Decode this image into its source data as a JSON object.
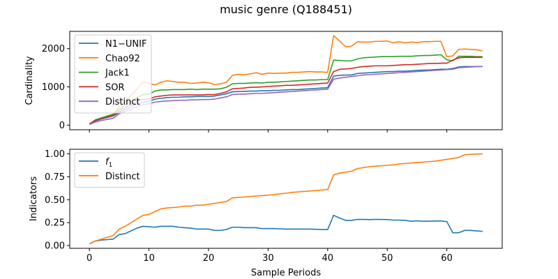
{
  "figure": {
    "title": "music genre (Q188451)"
  },
  "chart_data": [
    {
      "type": "line",
      "ylabel": "Cardinality",
      "xlabel": "",
      "xlim": [
        -3.3,
        69.3
      ],
      "ylim": [
        -120,
        2450
      ],
      "xticks": [
        0,
        10,
        20,
        30,
        40,
        50,
        60
      ],
      "yticks": [
        0,
        1000,
        2000
      ],
      "show_xtick_labels": false,
      "legend_position": "upper left",
      "x": [
        0,
        1,
        2,
        3,
        4,
        5,
        6,
        7,
        8,
        9,
        10,
        11,
        12,
        13,
        14,
        15,
        16,
        17,
        18,
        19,
        20,
        21,
        22,
        23,
        24,
        25,
        26,
        27,
        28,
        29,
        30,
        31,
        32,
        33,
        34,
        35,
        36,
        37,
        38,
        39,
        40,
        41,
        42,
        43,
        44,
        45,
        46,
        47,
        48,
        49,
        50,
        51,
        52,
        53,
        54,
        55,
        56,
        57,
        58,
        59,
        60,
        61,
        62,
        63,
        64,
        65,
        66
      ],
      "series": [
        {
          "name": "N1−UNIF",
          "color": "#1f77b4",
          "values": [
            30,
            110,
            160,
            200,
            240,
            330,
            410,
            480,
            550,
            600,
            620,
            680,
            700,
            720,
            730,
            730,
            740,
            740,
            750,
            750,
            750,
            760,
            790,
            820,
            870,
            880,
            880,
            890,
            890,
            900,
            900,
            910,
            910,
            920,
            930,
            930,
            940,
            950,
            960,
            970,
            980,
            1280,
            1300,
            1310,
            1310,
            1350,
            1360,
            1370,
            1380,
            1390,
            1400,
            1400,
            1410,
            1410,
            1420,
            1430,
            1440,
            1440,
            1450,
            1460,
            1460,
            1480,
            1520,
            1530,
            1530,
            1530,
            1530
          ]
        },
        {
          "name": "Chao92",
          "color": "#ff7f0e",
          "values": [
            30,
            130,
            180,
            230,
            280,
            480,
            620,
            780,
            940,
            1130,
            1100,
            1050,
            1120,
            1160,
            1140,
            1120,
            1120,
            1090,
            1100,
            1120,
            1110,
            1060,
            1080,
            1120,
            1300,
            1330,
            1320,
            1340,
            1370,
            1330,
            1360,
            1350,
            1360,
            1360,
            1380,
            1380,
            1390,
            1400,
            1390,
            1390,
            1380,
            2340,
            2200,
            2050,
            2060,
            2180,
            2170,
            2170,
            2190,
            2190,
            2200,
            2150,
            2180,
            2150,
            2170,
            2160,
            2180,
            2180,
            2190,
            2190,
            1790,
            1810,
            1980,
            1990,
            1980,
            1970,
            1940
          ]
        },
        {
          "name": "Jack1",
          "color": "#2ca02c",
          "values": [
            30,
            140,
            190,
            240,
            290,
            420,
            520,
            620,
            720,
            800,
            810,
            890,
            920,
            920,
            930,
            930,
            930,
            940,
            930,
            940,
            940,
            940,
            950,
            990,
            1080,
            1090,
            1090,
            1100,
            1110,
            1100,
            1120,
            1120,
            1130,
            1140,
            1150,
            1160,
            1170,
            1180,
            1180,
            1190,
            1190,
            1700,
            1690,
            1680,
            1680,
            1730,
            1760,
            1770,
            1780,
            1790,
            1790,
            1790,
            1800,
            1800,
            1800,
            1810,
            1820,
            1820,
            1830,
            1840,
            1710,
            1680,
            1800,
            1800,
            1800,
            1790,
            1790
          ]
        },
        {
          "name": "SOR",
          "color": "#d62728",
          "values": [
            30,
            120,
            170,
            210,
            250,
            370,
            460,
            540,
            620,
            680,
            680,
            740,
            760,
            780,
            790,
            790,
            790,
            790,
            790,
            790,
            800,
            800,
            830,
            870,
            950,
            960,
            970,
            990,
            990,
            1000,
            1010,
            1020,
            1030,
            1040,
            1040,
            1050,
            1060,
            1070,
            1080,
            1090,
            1100,
            1400,
            1460,
            1470,
            1480,
            1510,
            1530,
            1540,
            1550,
            1550,
            1550,
            1560,
            1570,
            1580,
            1580,
            1590,
            1600,
            1610,
            1610,
            1620,
            1620,
            1700,
            1760,
            1770,
            1770,
            1770,
            1770
          ]
        },
        {
          "name": "Distinct",
          "color": "#9467bd",
          "values": [
            20,
            80,
            120,
            150,
            180,
            300,
            360,
            420,
            480,
            540,
            560,
            600,
            620,
            630,
            640,
            650,
            650,
            660,
            660,
            670,
            670,
            680,
            710,
            740,
            800,
            810,
            810,
            820,
            830,
            830,
            840,
            850,
            860,
            870,
            880,
            890,
            900,
            910,
            920,
            930,
            940,
            1200,
            1230,
            1250,
            1270,
            1290,
            1310,
            1320,
            1330,
            1340,
            1350,
            1360,
            1370,
            1380,
            1390,
            1400,
            1410,
            1420,
            1430,
            1440,
            1450,
            1460,
            1500,
            1510,
            1520,
            1530,
            1530
          ]
        }
      ]
    },
    {
      "type": "line",
      "ylabel": "Indicators",
      "xlabel": "Sample Periods",
      "xlim": [
        -3.3,
        69.3
      ],
      "ylim": [
        -0.03,
        1.05
      ],
      "xticks": [
        0,
        10,
        20,
        30,
        40,
        50,
        60
      ],
      "yticks": [
        0.0,
        0.25,
        0.5,
        0.75,
        1.0
      ],
      "ytick_labels": [
        "0.00",
        "0.25",
        "0.50",
        "0.75",
        "1.00"
      ],
      "show_xtick_labels": true,
      "legend_position": "upper left",
      "x": [
        0,
        1,
        2,
        3,
        4,
        5,
        6,
        7,
        8,
        9,
        10,
        11,
        12,
        13,
        14,
        15,
        16,
        17,
        18,
        19,
        20,
        21,
        22,
        23,
        24,
        25,
        26,
        27,
        28,
        29,
        30,
        31,
        32,
        33,
        34,
        35,
        36,
        37,
        38,
        39,
        40,
        41,
        42,
        43,
        44,
        45,
        46,
        47,
        48,
        49,
        50,
        51,
        52,
        53,
        54,
        55,
        56,
        57,
        58,
        59,
        60,
        61,
        62,
        63,
        64,
        65,
        66
      ],
      "series": [
        {
          "name": "f1",
          "color": "#1f77b4",
          "values": [
            0.02,
            0.05,
            0.06,
            0.065,
            0.07,
            0.12,
            0.13,
            0.16,
            0.19,
            0.21,
            0.205,
            0.2,
            0.21,
            0.21,
            0.21,
            0.2,
            0.195,
            0.19,
            0.18,
            0.18,
            0.18,
            0.165,
            0.165,
            0.175,
            0.2,
            0.2,
            0.195,
            0.195,
            0.195,
            0.185,
            0.185,
            0.185,
            0.182,
            0.18,
            0.18,
            0.18,
            0.18,
            0.18,
            0.178,
            0.175,
            0.175,
            0.33,
            0.3,
            0.275,
            0.275,
            0.285,
            0.285,
            0.283,
            0.285,
            0.285,
            0.283,
            0.278,
            0.278,
            0.275,
            0.265,
            0.27,
            0.265,
            0.265,
            0.268,
            0.268,
            0.262,
            0.14,
            0.14,
            0.165,
            0.165,
            0.16,
            0.155
          ]
        },
        {
          "name": "Distinct",
          "color": "#ff7f0e",
          "values": [
            0.02,
            0.05,
            0.07,
            0.09,
            0.11,
            0.18,
            0.21,
            0.25,
            0.29,
            0.33,
            0.34,
            0.37,
            0.4,
            0.41,
            0.415,
            0.42,
            0.43,
            0.43,
            0.44,
            0.44,
            0.45,
            0.46,
            0.47,
            0.48,
            0.52,
            0.525,
            0.53,
            0.535,
            0.54,
            0.545,
            0.55,
            0.555,
            0.565,
            0.57,
            0.58,
            0.585,
            0.59,
            0.595,
            0.6,
            0.605,
            0.61,
            0.77,
            0.79,
            0.8,
            0.81,
            0.84,
            0.85,
            0.86,
            0.865,
            0.87,
            0.875,
            0.88,
            0.89,
            0.895,
            0.9,
            0.905,
            0.91,
            0.915,
            0.92,
            0.93,
            0.94,
            0.95,
            0.96,
            0.99,
            0.995,
            0.998,
            1.0
          ]
        }
      ]
    }
  ]
}
